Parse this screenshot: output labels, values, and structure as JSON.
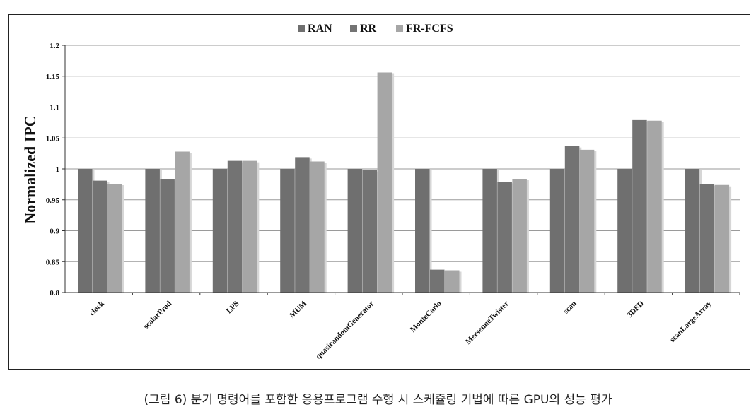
{
  "caption": "(그림 6) 분기 명령어를 포함한 응용프로그램 수행 시 스케쥴링 기법에 따른 GPU의 성능 평가",
  "colors": {
    "RAN": "#6f6f6f",
    "RR": "#737373",
    "FR-FCFS": "#a6a6a6",
    "grid": "#9a9a9a"
  },
  "chart_data": {
    "type": "bar",
    "title": "",
    "xlabel": "",
    "ylabel": "Normalized IPC",
    "ylim": [
      0.8,
      1.2
    ],
    "yticks": [
      "0.8",
      "0.85",
      "0.9",
      "0.95",
      "1",
      "1.05",
      "1.1",
      "1.15",
      "1.2"
    ],
    "grid": true,
    "legend_position": "top",
    "categories": [
      "clock",
      "scalarProd",
      "LPS",
      "MUM",
      "quasirandomGenerator",
      "MonteCarlo",
      "MersenneTwister",
      "scan",
      "3DFD",
      "scanLargeArray"
    ],
    "series": [
      {
        "name": "RAN",
        "values": [
          1.0,
          1.0,
          1.0,
          1.0,
          1.0,
          1.0,
          1.0,
          1.0,
          1.0,
          1.0
        ]
      },
      {
        "name": "RR",
        "values": [
          0.981,
          0.983,
          1.013,
          1.019,
          0.998,
          0.837,
          0.979,
          1.037,
          1.079,
          0.975
        ]
      },
      {
        "name": "FR-FCFS",
        "values": [
          0.976,
          1.028,
          1.013,
          1.012,
          1.156,
          0.836,
          0.984,
          1.031,
          1.078,
          0.974
        ]
      }
    ]
  }
}
